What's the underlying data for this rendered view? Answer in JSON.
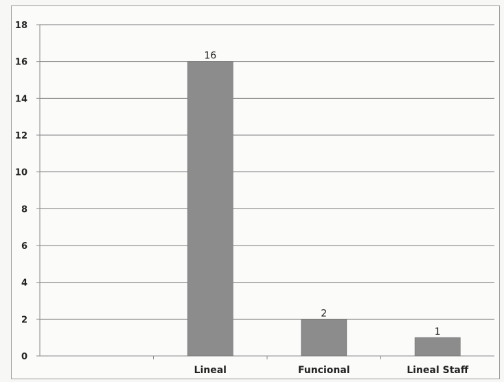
{
  "chart_data": {
    "type": "bar",
    "title": "",
    "xlabel": "",
    "ylabel": "",
    "categories": [
      "",
      "Lineal",
      "Funcional",
      "Lineal Staff"
    ],
    "values": [
      null,
      16,
      2,
      1
    ],
    "data_labels": [
      "",
      "16",
      "2",
      "1"
    ],
    "ylim": [
      0,
      18
    ],
    "yticks": [
      0,
      2,
      4,
      6,
      8,
      10,
      12,
      14,
      16,
      18
    ],
    "grid": true,
    "legend": "none",
    "colors": {
      "bar": "#8c8c8c",
      "grid": "#7a7a7a",
      "axis": "#8a8a8a"
    }
  }
}
